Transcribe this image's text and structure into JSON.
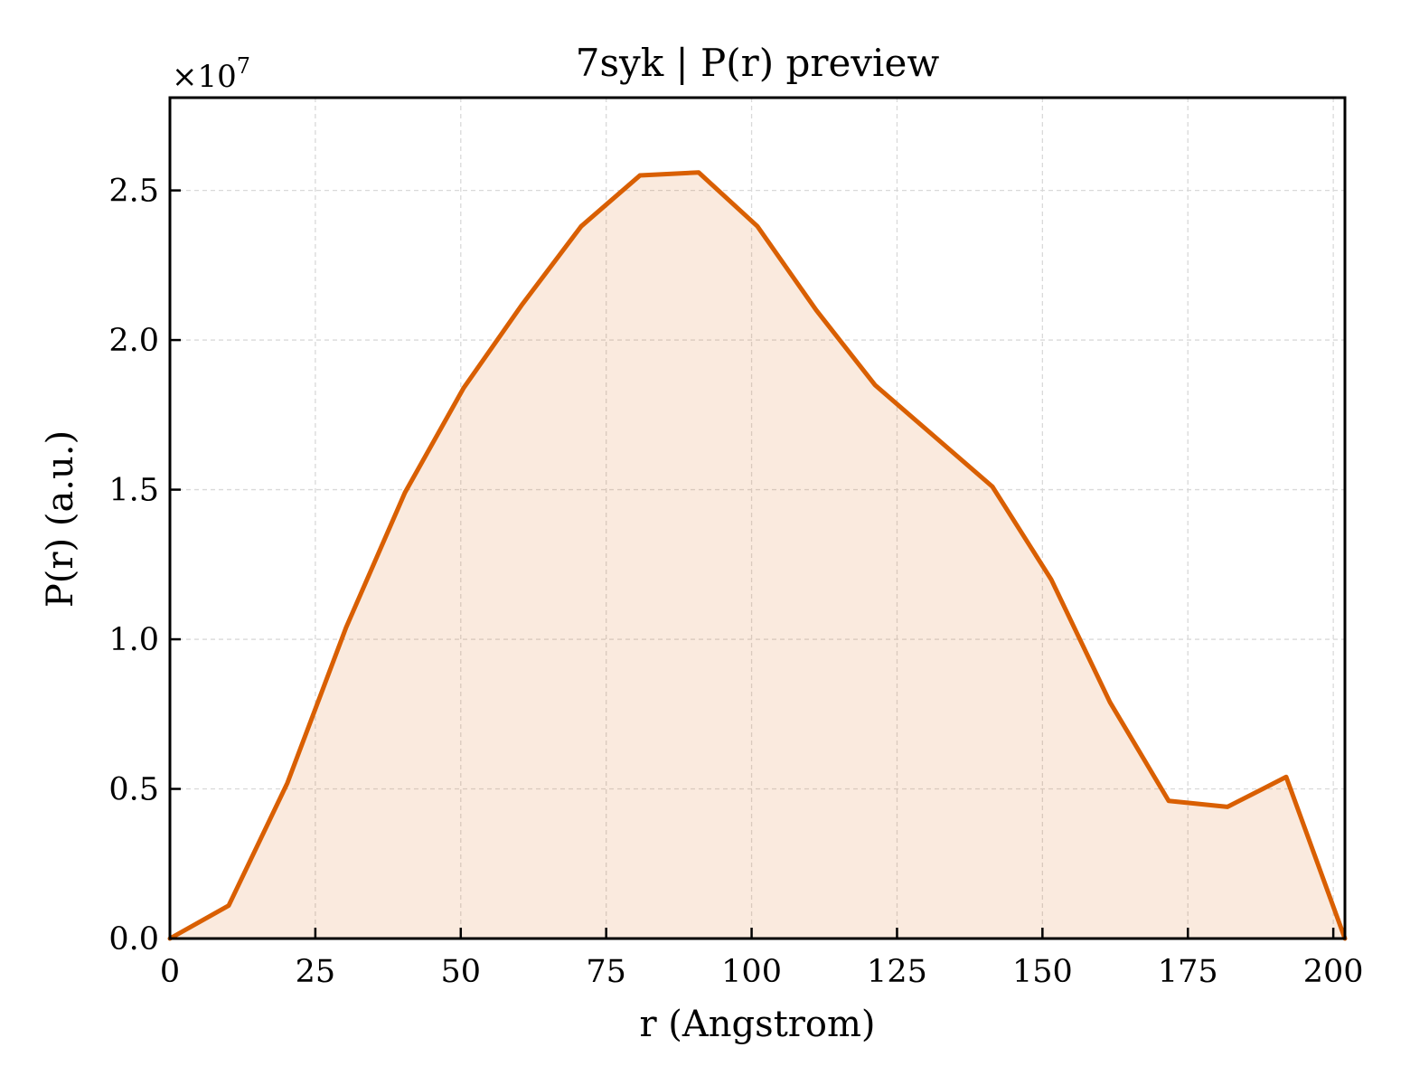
{
  "chart_data": {
    "type": "area",
    "title": "7syk | P(r) preview",
    "xlabel": "r (Angstrom)",
    "ylabel": "P(r) (a.u.)",
    "y_scale_label": "×10",
    "y_scale_exponent": "7",
    "xlim": [
      0,
      202
    ],
    "ylim": [
      0,
      2.81
    ],
    "x_ticks": [
      0,
      25,
      50,
      75,
      100,
      125,
      150,
      175,
      200
    ],
    "x_tick_labels": [
      "0",
      "25",
      "50",
      "75",
      "100",
      "125",
      "150",
      "175",
      "200"
    ],
    "y_ticks": [
      0,
      0.5,
      1.0,
      1.5,
      2.0,
      2.5
    ],
    "y_tick_labels": [
      "0.0",
      "0.5",
      "1.0",
      "1.5",
      "2.0",
      "2.5"
    ],
    "grid": true,
    "series": [
      {
        "color": "#d95f02",
        "fill_color": "#d95f02",
        "fill_opacity": 0.13,
        "x": [
          0,
          10.1,
          20.2,
          30.3,
          40.4,
          50.5,
          60.6,
          70.7,
          80.8,
          90.9,
          101,
          111.1,
          121.2,
          131.3,
          141.4,
          151.5,
          161.6,
          171.7,
          181.8,
          191.9,
          202
        ],
        "y": [
          0.0,
          0.11,
          0.52,
          1.04,
          1.49,
          1.84,
          2.12,
          2.38,
          2.55,
          2.56,
          2.38,
          2.1,
          1.85,
          1.68,
          1.51,
          1.2,
          0.79,
          0.46,
          0.44,
          0.54,
          0.0
        ]
      }
    ]
  }
}
